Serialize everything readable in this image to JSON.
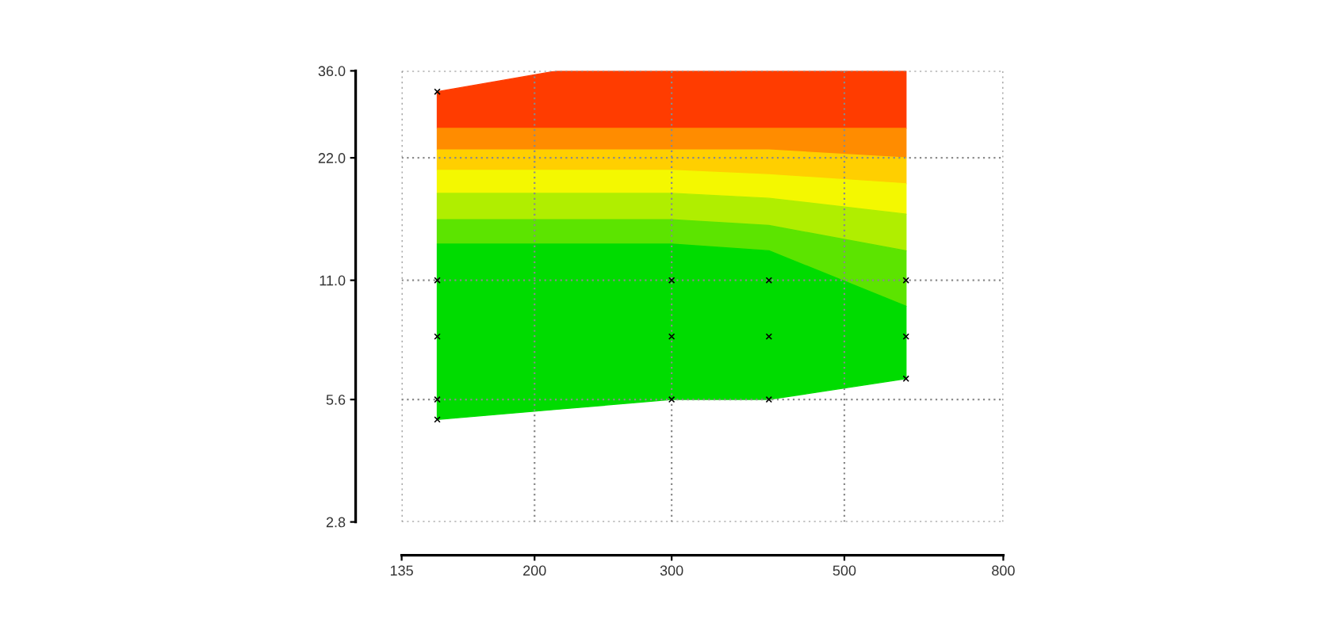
{
  "chart_data": {
    "type": "scatter",
    "log": "xy",
    "grid": true,
    "xlim": [
      135,
      800
    ],
    "xticks": [
      135,
      200,
      300,
      500,
      800
    ],
    "ylim": [
      2.8,
      36
    ],
    "yticks": [
      2.8,
      5.6,
      {
        "value": 11,
        "label": "11.0"
      },
      {
        "value": 22,
        "label": "22.0"
      },
      {
        "value": 36,
        "label": "36.0"
      }
    ],
    "series": [
      {
        "type": "area",
        "x": [
          150,
          214,
          300,
          400,
          600
        ],
        "values": [
          null,
          null,
          null,
          null,
          null
        ],
        "upper": [
          32,
          36,
          36,
          36,
          36
        ],
        "lower": [
          26,
          26,
          26,
          26,
          26
        ],
        "color": "#ff3c00"
      },
      {
        "type": "area",
        "x": [
          150,
          214,
          300,
          400,
          600
        ],
        "values": [
          null,
          null,
          null,
          null,
          null
        ],
        "upper": [
          26,
          26,
          26,
          26,
          26
        ],
        "lower": [
          23,
          23,
          23,
          23,
          22
        ],
        "color": "#ff8c00"
      },
      {
        "type": "area",
        "x": [
          150,
          214,
          300,
          400,
          600
        ],
        "values": [
          null,
          null,
          null,
          null,
          null
        ],
        "upper": [
          23,
          23,
          23,
          23,
          22
        ],
        "lower": [
          20.5,
          20.5,
          20.5,
          20,
          19
        ],
        "color": "#ffcf00"
      },
      {
        "type": "area",
        "x": [
          150,
          214,
          300,
          400,
          600
        ],
        "values": [
          null,
          null,
          null,
          null,
          null
        ],
        "upper": [
          20.5,
          20.5,
          20.5,
          20,
          19
        ],
        "lower": [
          18,
          18,
          18,
          17.5,
          16
        ],
        "color": "#f4f800"
      },
      {
        "type": "area",
        "x": [
          150,
          214,
          300,
          400,
          600
        ],
        "values": [
          null,
          null,
          null,
          null,
          null
        ],
        "upper": [
          18,
          18,
          18,
          17.5,
          16
        ],
        "lower": [
          15.5,
          15.5,
          15.5,
          15,
          13
        ],
        "color": "#b0ee00"
      },
      {
        "type": "area",
        "x": [
          150,
          214,
          300,
          400,
          600
        ],
        "values": [
          null,
          null,
          null,
          null,
          null
        ],
        "upper": [
          15.5,
          15.5,
          15.5,
          15,
          13
        ],
        "lower": [
          13.5,
          13.5,
          13.5,
          13,
          9.5
        ],
        "color": "#5ce400"
      },
      {
        "type": "area",
        "x": [
          150,
          214,
          300,
          400,
          600
        ],
        "values": [
          null,
          null,
          null,
          null,
          null
        ],
        "upper": [
          13.5,
          13.5,
          13.5,
          13,
          9.5
        ],
        "lower": [
          5.0,
          5.3,
          5.6,
          5.6,
          6.3
        ],
        "color": "#00dc00"
      },
      {
        "x": [
          150,
          150,
          150,
          150,
          150,
          300,
          300,
          300,
          400,
          400,
          400,
          600,
          600,
          600
        ],
        "values": [
          32,
          11,
          8,
          5.6,
          5.0,
          11,
          8,
          5.6,
          11,
          8,
          5.6,
          11,
          8,
          6.3
        ],
        "color": "#000000",
        "marker": "cross"
      }
    ]
  }
}
